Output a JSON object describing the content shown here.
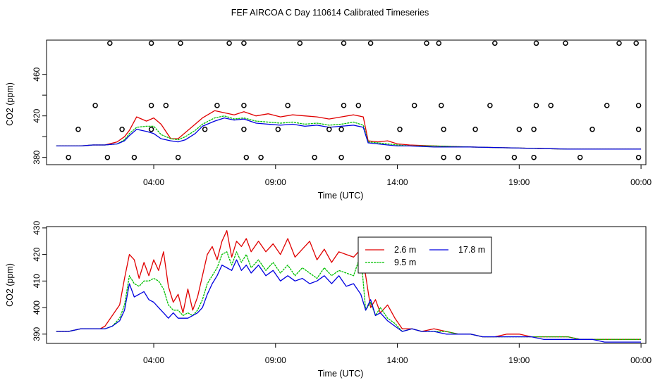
{
  "chart_data": [
    {
      "type": "scatter",
      "title": "FEF AIRCOA C  Day 110614  Calibrated Timeseries",
      "xlabel": "Time (UTC)",
      "ylabel": "CO2 (ppm)",
      "xlim_hours": [
        -0.4,
        24.2
      ],
      "ylim": [
        373,
        493
      ],
      "x_tick_labels": [
        "04:00",
        "09:00",
        "14:00",
        "19:00",
        "00:00"
      ],
      "x_tick_hours": [
        4,
        9,
        14,
        19,
        24
      ],
      "y_ticks": [
        380,
        420,
        460
      ],
      "y_minor_ticks": [
        400,
        440
      ],
      "open_circle_points": [
        {
          "x": 0.5,
          "y": 380
        },
        {
          "x": 2.1,
          "y": 380
        },
        {
          "x": 3.2,
          "y": 380
        },
        {
          "x": 5.0,
          "y": 380
        },
        {
          "x": 7.8,
          "y": 380
        },
        {
          "x": 8.4,
          "y": 380
        },
        {
          "x": 10.6,
          "y": 380
        },
        {
          "x": 11.7,
          "y": 380
        },
        {
          "x": 13.6,
          "y": 380
        },
        {
          "x": 15.9,
          "y": 380
        },
        {
          "x": 16.5,
          "y": 380
        },
        {
          "x": 18.8,
          "y": 380
        },
        {
          "x": 19.6,
          "y": 380
        },
        {
          "x": 21.5,
          "y": 380
        },
        {
          "x": 23.9,
          "y": 380
        },
        {
          "x": 0.9,
          "y": 407
        },
        {
          "x": 2.7,
          "y": 407
        },
        {
          "x": 3.9,
          "y": 407
        },
        {
          "x": 6.1,
          "y": 407
        },
        {
          "x": 7.7,
          "y": 407
        },
        {
          "x": 9.1,
          "y": 407
        },
        {
          "x": 11.2,
          "y": 407
        },
        {
          "x": 11.7,
          "y": 407
        },
        {
          "x": 14.1,
          "y": 407
        },
        {
          "x": 15.9,
          "y": 407
        },
        {
          "x": 17.2,
          "y": 407
        },
        {
          "x": 19.0,
          "y": 407
        },
        {
          "x": 19.6,
          "y": 407
        },
        {
          "x": 22.0,
          "y": 407
        },
        {
          "x": 23.9,
          "y": 407
        },
        {
          "x": 1.6,
          "y": 430
        },
        {
          "x": 3.9,
          "y": 430
        },
        {
          "x": 4.5,
          "y": 430
        },
        {
          "x": 6.6,
          "y": 430
        },
        {
          "x": 7.7,
          "y": 430
        },
        {
          "x": 9.5,
          "y": 430
        },
        {
          "x": 11.8,
          "y": 430
        },
        {
          "x": 12.4,
          "y": 430
        },
        {
          "x": 14.7,
          "y": 430
        },
        {
          "x": 15.8,
          "y": 430
        },
        {
          "x": 17.8,
          "y": 430
        },
        {
          "x": 19.7,
          "y": 430
        },
        {
          "x": 20.3,
          "y": 430
        },
        {
          "x": 22.6,
          "y": 430
        },
        {
          "x": 23.9,
          "y": 430
        },
        {
          "x": 2.2,
          "y": 490
        },
        {
          "x": 3.9,
          "y": 490
        },
        {
          "x": 5.1,
          "y": 490
        },
        {
          "x": 7.1,
          "y": 490
        },
        {
          "x": 7.7,
          "y": 490
        },
        {
          "x": 10.0,
          "y": 490
        },
        {
          "x": 11.8,
          "y": 490
        },
        {
          "x": 12.9,
          "y": 490
        },
        {
          "x": 15.2,
          "y": 490
        },
        {
          "x": 15.7,
          "y": 490
        },
        {
          "x": 18.0,
          "y": 490
        },
        {
          "x": 19.7,
          "y": 490
        },
        {
          "x": 20.9,
          "y": 490
        },
        {
          "x": 23.1,
          "y": 490
        },
        {
          "x": 23.8,
          "y": 490
        }
      ],
      "series": [
        {
          "name": "2.6 m",
          "color": "#e00000",
          "x_hours": [
            0,
            1,
            1.5,
            2,
            2.5,
            2.8,
            3.0,
            3.3,
            3.7,
            4.0,
            4.3,
            4.7,
            5.0,
            5.3,
            5.7,
            6.0,
            6.5,
            6.9,
            7.3,
            7.7,
            8.2,
            8.7,
            9.2,
            9.7,
            10.2,
            10.7,
            11.2,
            11.7,
            12.2,
            12.6,
            12.8,
            13.2,
            13.6,
            14.0,
            14.5,
            15.5,
            17,
            19,
            21,
            23,
            24
          ],
          "values": [
            391,
            391,
            392,
            392,
            395,
            400,
            406,
            419,
            415,
            418,
            412,
            398,
            398,
            404,
            412,
            418,
            425,
            423,
            421,
            424,
            420,
            422,
            419,
            421,
            420,
            419,
            417,
            419,
            421,
            419,
            396,
            395,
            396,
            393,
            392,
            391,
            390,
            389,
            388,
            388,
            388
          ]
        },
        {
          "name": "9.5 m",
          "color": "#00c000",
          "x_hours": [
            0,
            1,
            1.5,
            2,
            2.5,
            2.8,
            3.0,
            3.3,
            3.7,
            4.0,
            4.3,
            4.7,
            5.0,
            5.3,
            5.7,
            6.0,
            6.5,
            6.9,
            7.3,
            7.7,
            8.2,
            8.7,
            9.2,
            9.7,
            10.2,
            10.7,
            11.2,
            11.7,
            12.2,
            12.6,
            12.8,
            13.2,
            13.6,
            14.0,
            14.5,
            15.5,
            17,
            19,
            21,
            23,
            24
          ],
          "values": [
            391,
            391,
            392,
            392,
            393,
            397,
            403,
            409,
            410,
            410,
            402,
            398,
            397,
            400,
            406,
            412,
            418,
            420,
            417,
            418,
            415,
            414,
            413,
            414,
            412,
            413,
            411,
            412,
            414,
            411,
            395,
            394,
            393,
            392,
            391,
            391,
            390,
            389,
            388,
            388,
            388
          ]
        },
        {
          "name": "17.8 m",
          "color": "#0000e0",
          "x_hours": [
            0,
            1,
            1.5,
            2,
            2.5,
            2.8,
            3.0,
            3.3,
            3.7,
            4.0,
            4.3,
            4.7,
            5.0,
            5.3,
            5.7,
            6.0,
            6.5,
            6.9,
            7.3,
            7.7,
            8.2,
            8.7,
            9.2,
            9.7,
            10.2,
            10.7,
            11.2,
            11.7,
            12.2,
            12.6,
            12.8,
            13.2,
            13.6,
            14.0,
            14.5,
            15.5,
            17,
            19,
            21,
            23,
            24
          ],
          "values": [
            391,
            391,
            392,
            392,
            393,
            396,
            401,
            407,
            405,
            403,
            398,
            396,
            395,
            397,
            403,
            410,
            415,
            418,
            416,
            417,
            413,
            412,
            411,
            412,
            410,
            411,
            409,
            410,
            411,
            409,
            394,
            393,
            392,
            391,
            391,
            390,
            390,
            389,
            388,
            388,
            388
          ]
        }
      ]
    },
    {
      "type": "line",
      "xlabel": "Time (UTC)",
      "ylabel": "CO2 (ppm)",
      "xlim_hours": [
        -0.4,
        24.2
      ],
      "ylim": [
        386.5,
        430.5
      ],
      "x_tick_labels": [
        "04:00",
        "09:00",
        "14:00",
        "19:00",
        "00:00"
      ],
      "x_tick_hours": [
        4,
        9,
        14,
        19,
        24
      ],
      "y_ticks": [
        390,
        400,
        410,
        420,
        430
      ],
      "y_tick_labels": [
        "390",
        "400",
        "410",
        "420",
        "430"
      ],
      "legend": [
        "2.6 m",
        "17.8 m",
        "9.5 m"
      ],
      "legend_position": "upper-right",
      "series": [
        {
          "name": "2.6 m",
          "color": "#e00000",
          "x_hours": [
            0,
            0.5,
            1.0,
            1.5,
            1.8,
            2.0,
            2.3,
            2.6,
            2.8,
            3.0,
            3.2,
            3.4,
            3.6,
            3.8,
            4.0,
            4.2,
            4.4,
            4.6,
            4.8,
            5.0,
            5.2,
            5.4,
            5.6,
            5.8,
            6.0,
            6.2,
            6.4,
            6.6,
            6.8,
            7.0,
            7.2,
            7.4,
            7.6,
            7.8,
            8.0,
            8.3,
            8.6,
            8.9,
            9.2,
            9.5,
            9.8,
            10.1,
            10.4,
            10.7,
            11.0,
            11.3,
            11.6,
            11.9,
            12.2,
            12.5,
            12.7,
            12.9,
            13.1,
            13.3,
            13.6,
            13.9,
            14.2,
            14.6,
            15.0,
            15.5,
            16.0,
            16.5,
            17.0,
            17.5,
            18.0,
            18.5,
            19.0,
            19.5,
            20.0,
            20.5,
            21.0,
            21.5,
            22.0,
            22.5,
            23.0,
            23.5,
            24.0
          ],
          "values": [
            391,
            391,
            392,
            392,
            392,
            393,
            397,
            401,
            411,
            420,
            418,
            411,
            417,
            412,
            418,
            414,
            421,
            408,
            402,
            405,
            398,
            407,
            399,
            404,
            412,
            420,
            423,
            418,
            425,
            429,
            419,
            425,
            423,
            426,
            421,
            425,
            421,
            424,
            420,
            426,
            419,
            422,
            425,
            418,
            422,
            417,
            421,
            420,
            419,
            422,
            412,
            400,
            403,
            398,
            401,
            396,
            392,
            392,
            391,
            392,
            391,
            390,
            390,
            389,
            389,
            390,
            390,
            389,
            389,
            389,
            389,
            388,
            388,
            388,
            388,
            388,
            388
          ]
        },
        {
          "name": "9.5 m",
          "color": "#00c000",
          "x_hours": [
            0,
            0.5,
            1.0,
            1.5,
            1.8,
            2.0,
            2.3,
            2.6,
            2.8,
            3.0,
            3.2,
            3.4,
            3.6,
            3.8,
            4.0,
            4.2,
            4.4,
            4.6,
            4.8,
            5.0,
            5.2,
            5.4,
            5.6,
            5.8,
            6.0,
            6.2,
            6.4,
            6.6,
            6.8,
            7.0,
            7.2,
            7.4,
            7.6,
            7.8,
            8.0,
            8.3,
            8.6,
            8.9,
            9.2,
            9.5,
            9.8,
            10.1,
            10.4,
            10.7,
            11.0,
            11.3,
            11.6,
            11.9,
            12.2,
            12.5,
            12.7,
            12.9,
            13.1,
            13.3,
            13.6,
            13.9,
            14.2,
            14.6,
            15.0,
            15.5,
            16.0,
            16.5,
            17.0,
            17.5,
            18.0,
            18.5,
            19.0,
            19.5,
            20.0,
            20.5,
            21.0,
            21.5,
            22.0,
            22.5,
            23.0,
            23.5,
            24.0
          ],
          "values": [
            391,
            391,
            392,
            392,
            392,
            392,
            393,
            396,
            401,
            412,
            409,
            408,
            410,
            410,
            411,
            410,
            407,
            401,
            399,
            399,
            397,
            398,
            397,
            399,
            403,
            409,
            412,
            415,
            420,
            421,
            416,
            421,
            417,
            420,
            415,
            418,
            414,
            417,
            413,
            416,
            412,
            415,
            413,
            411,
            415,
            412,
            414,
            413,
            412,
            420,
            399,
            402,
            397,
            400,
            396,
            394,
            391,
            392,
            391,
            391,
            391,
            390,
            390,
            389,
            389,
            389,
            389,
            389,
            389,
            389,
            389,
            388,
            388,
            388,
            388,
            388,
            388
          ]
        },
        {
          "name": "17.8 m",
          "color": "#0000e0",
          "x_hours": [
            0,
            0.5,
            1.0,
            1.5,
            1.8,
            2.0,
            2.3,
            2.6,
            2.8,
            3.0,
            3.2,
            3.4,
            3.6,
            3.8,
            4.0,
            4.2,
            4.4,
            4.6,
            4.8,
            5.0,
            5.2,
            5.4,
            5.6,
            5.8,
            6.0,
            6.2,
            6.4,
            6.6,
            6.8,
            7.0,
            7.2,
            7.4,
            7.6,
            7.8,
            8.0,
            8.3,
            8.6,
            8.9,
            9.2,
            9.5,
            9.8,
            10.1,
            10.4,
            10.7,
            11.0,
            11.3,
            11.6,
            11.9,
            12.2,
            12.5,
            12.7,
            12.9,
            13.1,
            13.3,
            13.6,
            13.9,
            14.2,
            14.6,
            15.0,
            15.5,
            16.0,
            16.5,
            17.0,
            17.5,
            18.0,
            18.5,
            19.0,
            19.5,
            20.0,
            20.5,
            21.0,
            21.5,
            22.0,
            22.5,
            23.0,
            23.5,
            24.0
          ],
          "values": [
            391,
            391,
            392,
            392,
            392,
            392,
            393,
            395,
            399,
            409,
            404,
            405,
            406,
            403,
            402,
            400,
            398,
            396,
            398,
            396,
            396,
            396,
            397,
            398,
            400,
            405,
            409,
            412,
            416,
            415,
            414,
            418,
            414,
            416,
            413,
            416,
            412,
            414,
            410,
            412,
            410,
            411,
            409,
            410,
            412,
            409,
            412,
            408,
            409,
            405,
            399,
            403,
            397,
            398,
            395,
            393,
            391,
            392,
            391,
            391,
            390,
            390,
            390,
            389,
            389,
            389,
            389,
            389,
            388,
            388,
            388,
            388,
            388,
            387,
            387,
            387,
            387
          ]
        }
      ]
    }
  ]
}
